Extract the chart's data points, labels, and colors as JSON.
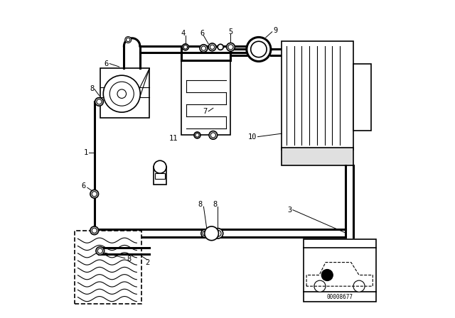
{
  "bg_color": "#ffffff",
  "line_color": "#000000",
  "part_code": "00008677"
}
